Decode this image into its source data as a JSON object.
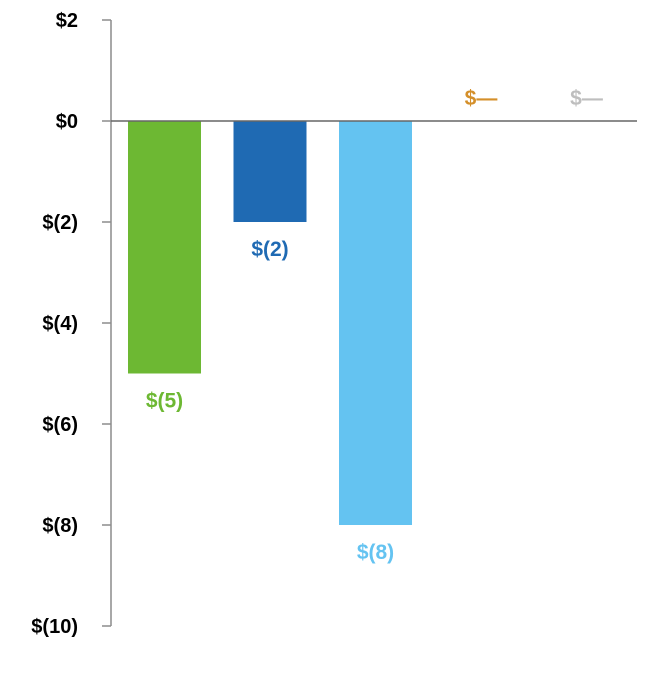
{
  "chart_data": {
    "type": "bar",
    "title": "",
    "xlabel": "",
    "ylabel": "",
    "ylim": [
      -10,
      2
    ],
    "yticks": [
      2,
      0,
      -2,
      -4,
      -6,
      -8,
      -10
    ],
    "ytick_labels": [
      "$2",
      "$0",
      "$(2)",
      "$(4)",
      "$(6)",
      "$(8)",
      "$(10)"
    ],
    "grid": false,
    "legend": "none",
    "values": [
      -5,
      -2,
      -8,
      0,
      0
    ],
    "data_labels": [
      "$(5)",
      "$(2)",
      "$(8)",
      "$—",
      "$—"
    ],
    "colors": [
      "#6DB833",
      "#1F6AB3",
      "#64C3F1",
      "#D48F2A",
      "#BEBEBE"
    ]
  }
}
